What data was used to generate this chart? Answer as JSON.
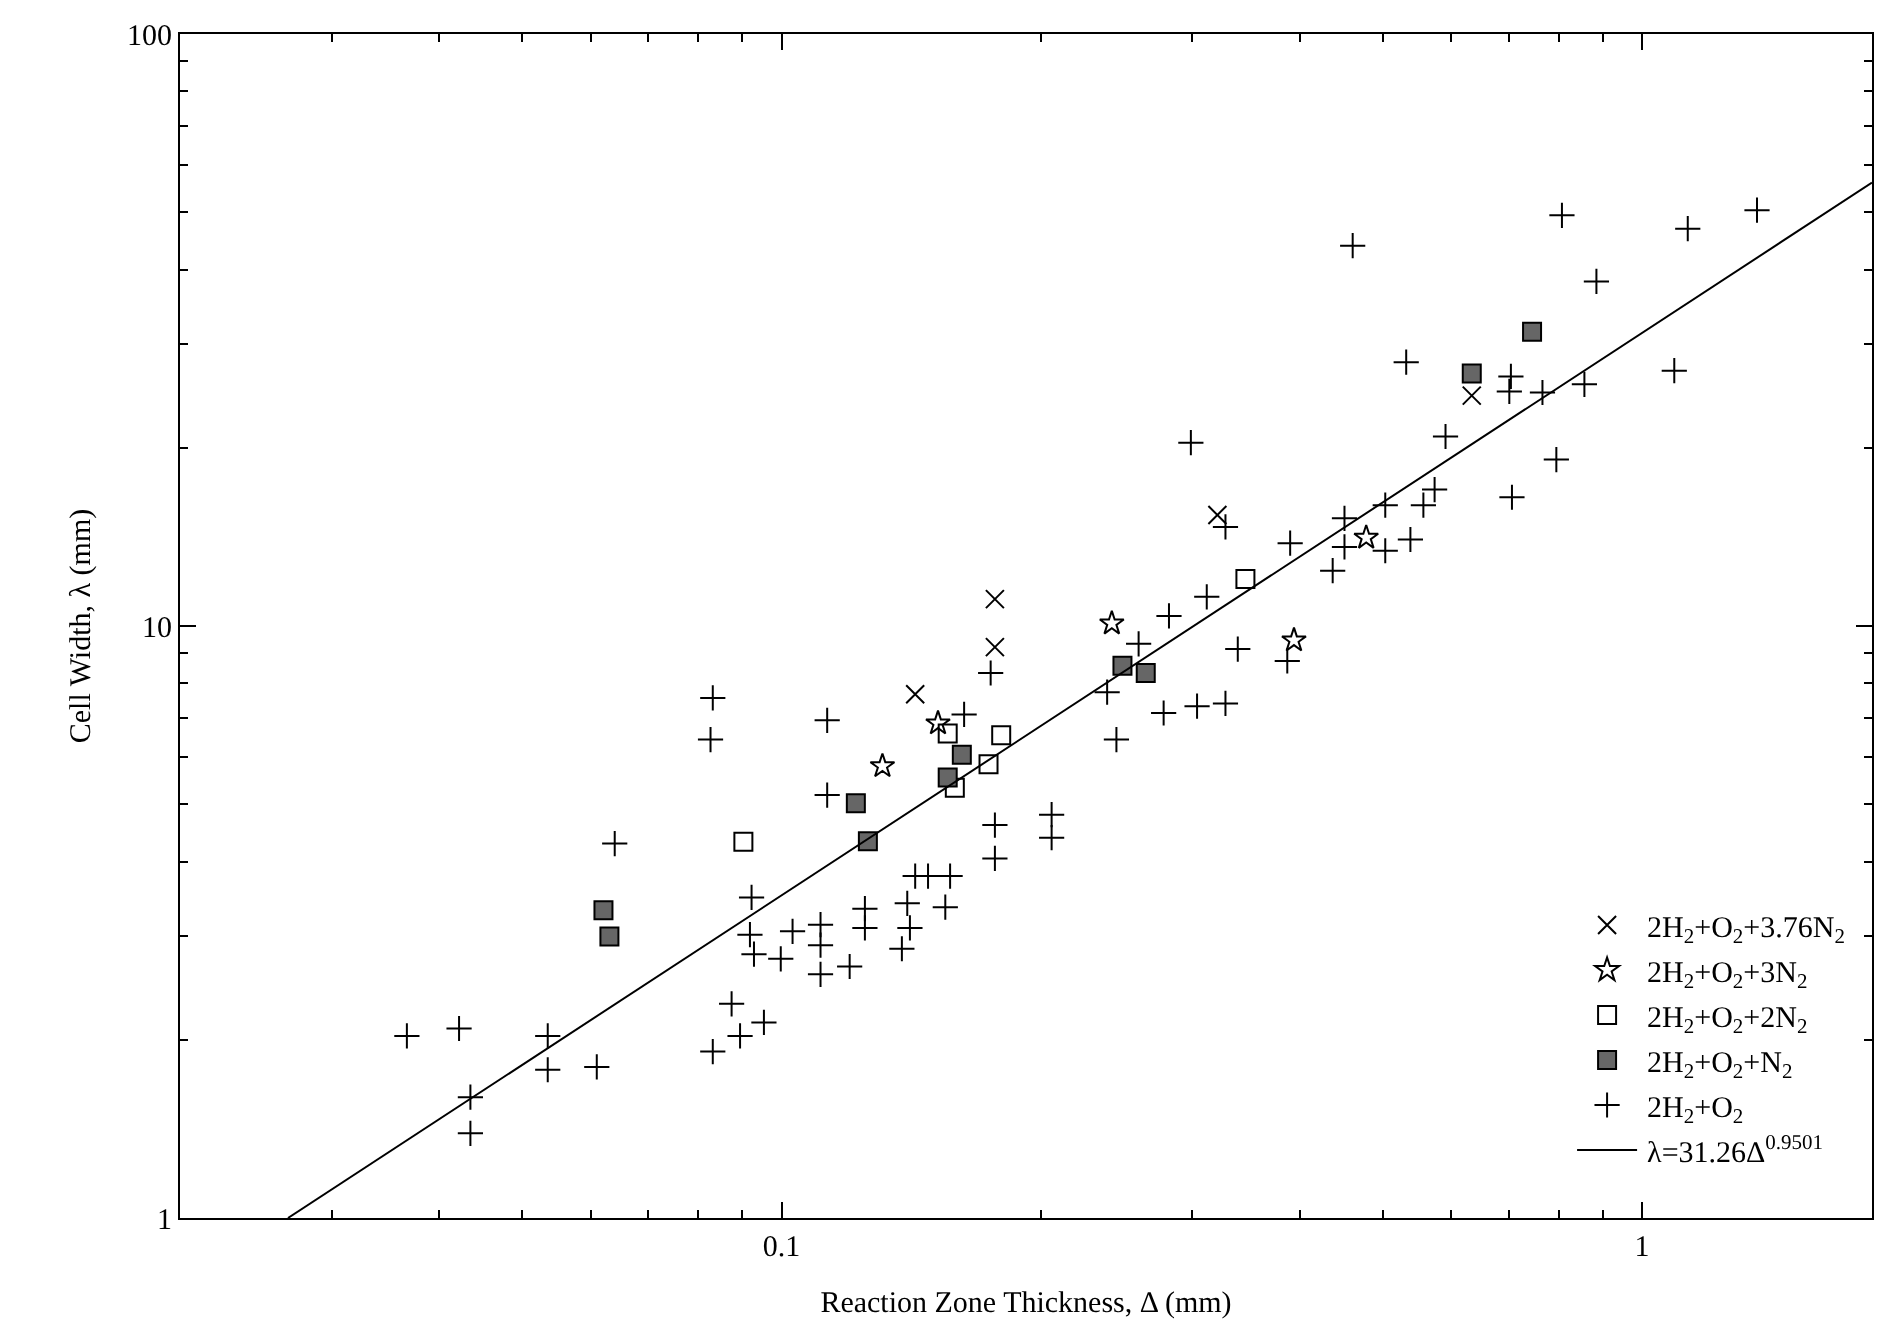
{
  "chart_data": {
    "type": "scatter",
    "xlabel": "Reaction Zone Thickness, Δ (mm)",
    "ylabel": "Cell Width, λ (mm)",
    "log": "xy",
    "xlim": [
      0.02,
      1.85
    ],
    "ylim": [
      1,
      100
    ],
    "xticks": [
      0.1,
      1
    ],
    "yticks": [
      1,
      10,
      100
    ],
    "grid": false,
    "legend": "bottom right",
    "series": [
      {
        "name": "2H$_{2}$+O$_{2}$+3.76N$_{2}$",
        "color": "#000000",
        "marker": "cross",
        "x": [
          0.177,
          0.177,
          0.143,
          0.321,
          0.634
        ],
        "values": [
          11.1,
          9.21,
          7.67,
          15.4,
          24.5
        ]
      },
      {
        "name": "2H$_{2}$+O$_{2}$+3N$_{2}$",
        "color": "#000000",
        "marker": "star",
        "x": [
          0.242,
          0.152,
          0.131,
          0.394,
          0.478
        ],
        "values": [
          10.1,
          6.85,
          5.8,
          9.46,
          14.1
        ]
      },
      {
        "name": "2H$_{2}$+O$_{2}$+2N$_{2}$",
        "color": "#000000",
        "marker": "square",
        "x": [
          0.0903,
          0.156,
          0.18,
          0.174,
          0.159,
          0.346
        ],
        "values": [
          4.32,
          6.58,
          6.54,
          5.84,
          5.33,
          12.0
        ]
      },
      {
        "name": "2H$_{2}$+O$_{2}$+N$_{2}$",
        "color": "#666666",
        "marker": "square",
        "x": [
          0.0621,
          0.0631,
          0.122,
          0.126,
          0.162,
          0.156,
          0.249,
          0.265,
          0.745,
          0.634
        ],
        "values": [
          3.31,
          2.99,
          5.02,
          4.33,
          6.06,
          5.55,
          8.57,
          8.33,
          31.4,
          26.7
        ]
      },
      {
        "name": "2H$_{2}$+O$_{2}$",
        "color": "#000000",
        "marker": "cross",
        "x": [
          0.0832,
          0.0827,
          0.064,
          0.0923,
          0.0919,
          0.0929,
          0.0998,
          0.0875,
          0.0895,
          0.0954,
          0.0832,
          0.0367,
          0.0422,
          0.0435,
          0.0435,
          0.0535,
          0.0535,
          0.061,
          0.299,
          0.328,
          0.39,
          0.451,
          0.451,
          0.437,
          0.312,
          0.282,
          0.26,
          0.339,
          0.387,
          0.175,
          0.163,
          0.113,
          0.239,
          0.278,
          0.304,
          0.328,
          0.245,
          0.113,
          0.177,
          0.177,
          0.206,
          0.206,
          0.143,
          0.148,
          0.157,
          0.125,
          0.125,
          0.14,
          0.141,
          0.155,
          0.111,
          0.111,
          0.103,
          0.138,
          0.111,
          0.12,
          0.461,
          0.807,
          1.13,
          1.36,
          0.885,
          0.532,
          0.704,
          0.701,
          0.766,
          0.857,
          1.09,
          0.591,
          0.795,
          0.706,
          0.574,
          0.557,
          0.503,
          0.503,
          0.538
        ],
        "values": [
          7.56,
          6.43,
          4.29,
          3.48,
          3.01,
          2.79,
          2.74,
          2.3,
          2.03,
          2.14,
          1.91,
          2.03,
          2.09,
          1.6,
          1.39,
          2.03,
          1.78,
          1.8,
          20.4,
          14.7,
          13.8,
          15.2,
          13.6,
          12.4,
          11.2,
          10.4,
          9.33,
          9.14,
          8.73,
          8.33,
          7.09,
          6.93,
          7.73,
          7.13,
          7.32,
          7.4,
          6.43,
          5.18,
          4.61,
          4.05,
          4.8,
          4.39,
          3.78,
          3.78,
          3.78,
          3.33,
          3.09,
          3.4,
          3.09,
          3.35,
          3.13,
          2.89,
          3.05,
          2.85,
          2.58,
          2.66,
          43.9,
          49.4,
          46.9,
          50.4,
          38.2,
          27.9,
          26.4,
          24.9,
          24.8,
          25.6,
          27.0,
          20.9,
          19.1,
          16.5,
          17.0,
          16.0,
          16.0,
          13.4,
          14.0
        ]
      },
      {
        "name": "λ=31.26Δ$^{0.9501}$",
        "type": "line",
        "color": "#000000",
        "marker": "none",
        "line_style": "solid",
        "x": [
          0.0267,
          1.85
        ],
        "values": [
          1,
          56.1
        ]
      }
    ]
  }
}
